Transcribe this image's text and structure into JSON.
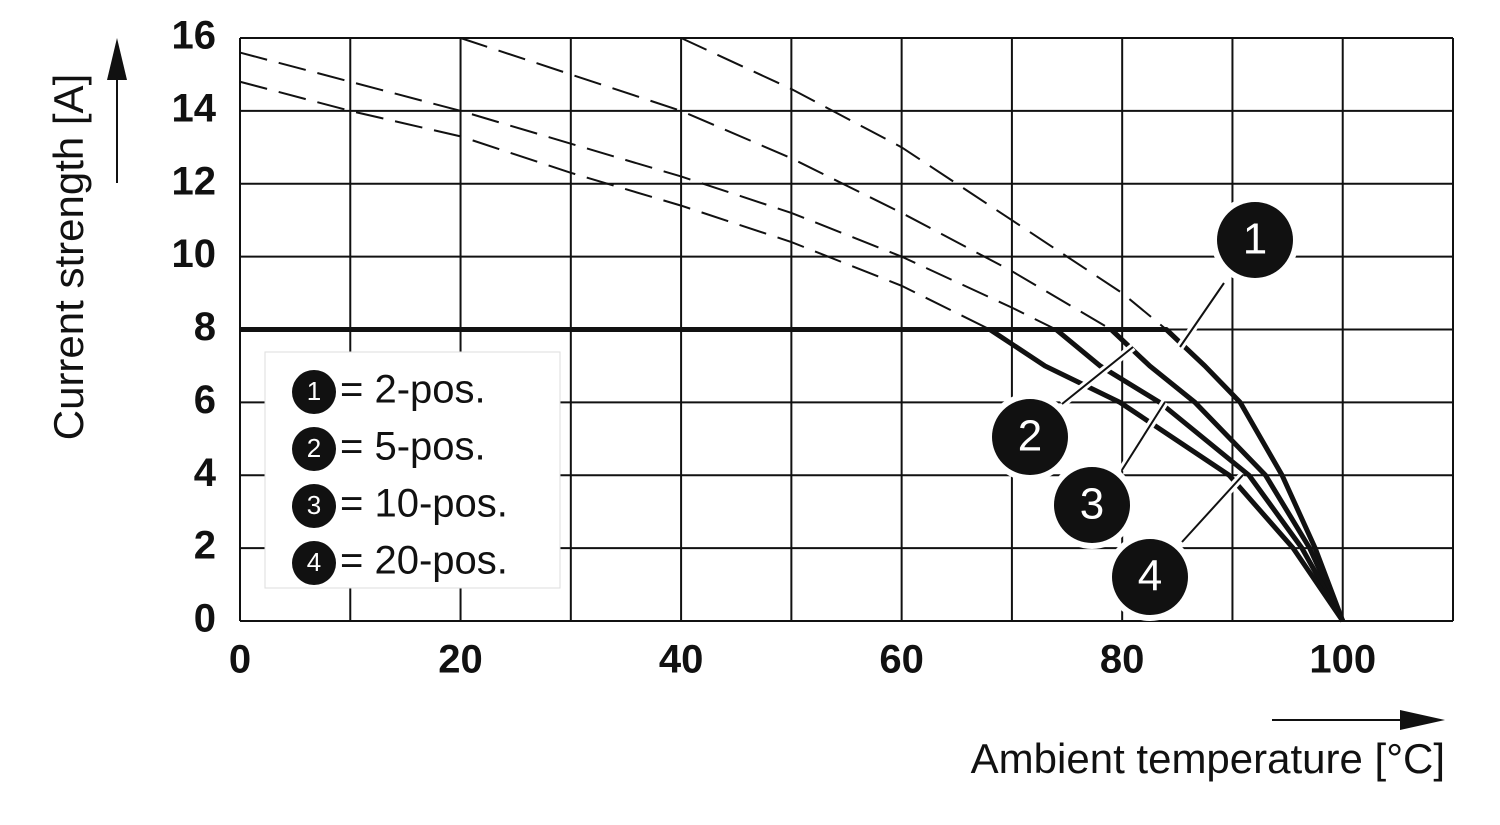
{
  "chart_data": {
    "type": "line",
    "xlabel": "Ambient temperature [°C]",
    "ylabel": "Current strength [A]",
    "xlim": [
      0,
      110
    ],
    "ylim": [
      0,
      16
    ],
    "xticks": [
      0,
      20,
      40,
      60,
      80,
      100
    ],
    "yticks": [
      0,
      2,
      4,
      6,
      8,
      10,
      12,
      14,
      16
    ],
    "xgrid": [
      0,
      10,
      20,
      30,
      40,
      50,
      60,
      70,
      80,
      90,
      100,
      110
    ],
    "grid": true,
    "color": "#111111",
    "series": [
      {
        "number": "1",
        "name": "= 2-pos.",
        "x": [
          0,
          84,
          87.5,
          90.7,
          94.5,
          97.5,
          100
        ],
        "values": [
          8,
          8,
          7,
          6,
          4,
          2,
          0
        ],
        "dashed_x": [
          40,
          50,
          60,
          70,
          80,
          84
        ],
        "dashed_values": [
          16,
          14.6,
          13,
          11,
          9,
          8
        ]
      },
      {
        "number": "2",
        "name": "= 5-pos.",
        "x": [
          0,
          79,
          82.5,
          86.6,
          93,
          97,
          100
        ],
        "values": [
          8,
          8,
          7,
          6,
          4,
          2,
          0
        ],
        "dashed_x": [
          20,
          30,
          40,
          50,
          60,
          70,
          79
        ],
        "dashed_values": [
          16,
          15,
          14,
          12.7,
          11.2,
          9.6,
          8
        ]
      },
      {
        "number": "3",
        "name": "= 10-pos.",
        "x": [
          0,
          74,
          78,
          83.4,
          91.5,
          96.3,
          100
        ],
        "values": [
          8,
          8,
          7,
          6,
          4,
          2,
          0
        ],
        "dashed_x": [
          0,
          10,
          20,
          30,
          40,
          50,
          60,
          70,
          74
        ],
        "dashed_values": [
          15.6,
          14.8,
          14,
          13.1,
          12.2,
          11.2,
          10,
          8.6,
          8
        ]
      },
      {
        "number": "4",
        "name": "= 20-pos.",
        "x": [
          0,
          68,
          73,
          79.8,
          89.7,
          95.5,
          100
        ],
        "values": [
          8,
          8,
          7,
          6,
          4,
          2,
          0
        ],
        "dashed_x": [
          0,
          10,
          20,
          30,
          40,
          50,
          60,
          68
        ],
        "dashed_values": [
          14.8,
          14,
          13.3,
          12.3,
          11.4,
          10.4,
          9.2,
          8
        ]
      }
    ]
  }
}
